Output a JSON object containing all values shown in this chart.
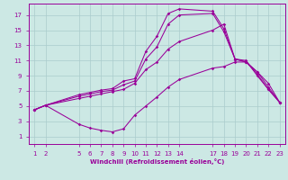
{
  "xlabel": "Windchill (Refroidissement éolien,°C)",
  "bg_color": "#cce8e4",
  "line_color": "#990099",
  "grid_color": "#aacccc",
  "x_ticks": [
    1,
    2,
    5,
    6,
    7,
    8,
    9,
    10,
    11,
    12,
    13,
    14,
    17,
    18,
    19,
    20,
    21,
    22,
    23
  ],
  "y_ticks": [
    1,
    3,
    5,
    7,
    9,
    11,
    13,
    15,
    17
  ],
  "xlim": [
    0.5,
    23.5
  ],
  "ylim": [
    0,
    18.5
  ],
  "lines": [
    {
      "x": [
        1,
        2,
        5,
        6,
        7,
        8,
        9,
        10,
        11,
        12,
        13,
        14,
        17,
        18,
        19,
        20,
        21,
        22,
        23
      ],
      "y": [
        4.5,
        5.1,
        6.5,
        6.8,
        7.1,
        7.3,
        8.3,
        8.6,
        12.2,
        14.2,
        17.2,
        17.8,
        17.5,
        15.2,
        11.2,
        11.0,
        9.0,
        7.2,
        5.5
      ]
    },
    {
      "x": [
        1,
        2,
        5,
        6,
        7,
        8,
        9,
        10,
        11,
        12,
        13,
        14,
        17,
        18,
        19,
        20,
        21,
        22,
        23
      ],
      "y": [
        4.5,
        5.1,
        6.3,
        6.6,
        6.9,
        7.1,
        7.8,
        8.3,
        11.2,
        12.8,
        15.8,
        17.0,
        17.2,
        14.8,
        11.2,
        10.8,
        9.2,
        7.2,
        5.5
      ]
    },
    {
      "x": [
        1,
        2,
        5,
        6,
        7,
        8,
        9,
        10,
        11,
        12,
        13,
        14,
        17,
        18,
        19,
        20,
        21,
        22,
        23
      ],
      "y": [
        4.5,
        5.1,
        6.0,
        6.3,
        6.6,
        6.9,
        7.2,
        8.0,
        9.8,
        10.8,
        12.5,
        13.5,
        15.0,
        15.8,
        11.2,
        10.8,
        9.5,
        7.5,
        5.5
      ]
    },
    {
      "x": [
        1,
        2,
        5,
        6,
        7,
        8,
        9,
        10,
        11,
        12,
        13,
        14,
        17,
        18,
        19,
        20,
        21,
        22,
        23
      ],
      "y": [
        4.5,
        5.1,
        2.6,
        2.1,
        1.8,
        1.6,
        2.0,
        3.8,
        5.0,
        6.2,
        7.5,
        8.5,
        10.0,
        10.2,
        10.8,
        10.8,
        9.5,
        8.0,
        5.5
      ]
    }
  ]
}
